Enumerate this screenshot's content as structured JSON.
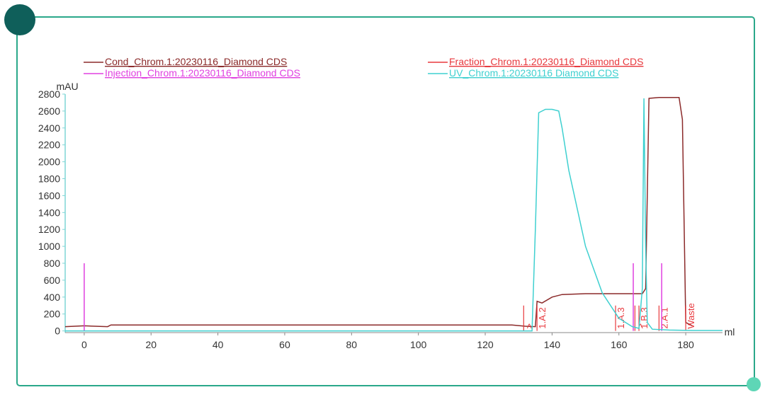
{
  "chart_data": {
    "type": "line",
    "x_label": "ml",
    "y_label": "mAU",
    "xlim": [
      -5.7,
      191
    ],
    "ylim": [
      -20,
      2800
    ],
    "xticks": [
      0,
      20,
      40,
      60,
      80,
      100,
      120,
      140,
      160,
      180
    ],
    "yticks": [
      0,
      200,
      400,
      600,
      800,
      1000,
      1200,
      1400,
      1600,
      1800,
      2000,
      2200,
      2400,
      2600,
      2800
    ],
    "series": [
      {
        "name": "Cond_Chrom.1:20230116_Diamond CDS",
        "color": "#8b2a2a",
        "style": "line",
        "x": [
          -5.7,
          0,
          7,
          8,
          128,
          132,
          135,
          135.5,
          137,
          140,
          143,
          150,
          167,
          168,
          169,
          172,
          178,
          179,
          180,
          182
        ],
        "values": [
          50,
          60,
          50,
          70,
          70,
          55,
          50,
          350,
          330,
          400,
          430,
          440,
          440,
          500,
          2750,
          2760,
          2760,
          2500,
          100,
          60
        ]
      },
      {
        "name": "Fraction_Chrom.1:20230116_Diamond CDS",
        "color": "#e8383d",
        "style": "fraction",
        "x": [
          131.5,
          135.5,
          159,
          164.8,
          166,
          172,
          180
        ],
        "values": [
          300,
          300,
          300,
          300,
          300,
          300,
          300
        ],
        "labels": [
          ">",
          "1.A.2",
          "1.A.3",
          ">",
          "1.B.3",
          "2.A.1",
          "Waste"
        ]
      },
      {
        "name": "Injection_Chrom.1:20230116_Diamond CDS",
        "color": "#e040e0",
        "style": "impulse",
        "x": [
          0,
          164.3,
          172.8
        ],
        "values": [
          800,
          800,
          800
        ]
      },
      {
        "name": "UV_Chrom.1:20230116 Diamond CDS",
        "color": "#3fd0d0",
        "style": "line",
        "x": [
          -5.7,
          134,
          135,
          136,
          138,
          140,
          142,
          143,
          145,
          150,
          155,
          160,
          164,
          166,
          167,
          167.5,
          168,
          168.5,
          170,
          175,
          182,
          191
        ],
        "values": [
          0,
          0,
          1200,
          2580,
          2620,
          2620,
          2600,
          2400,
          1900,
          1000,
          450,
          150,
          50,
          30,
          500,
          2750,
          1000,
          100,
          20,
          10,
          5,
          5
        ]
      }
    ]
  }
}
